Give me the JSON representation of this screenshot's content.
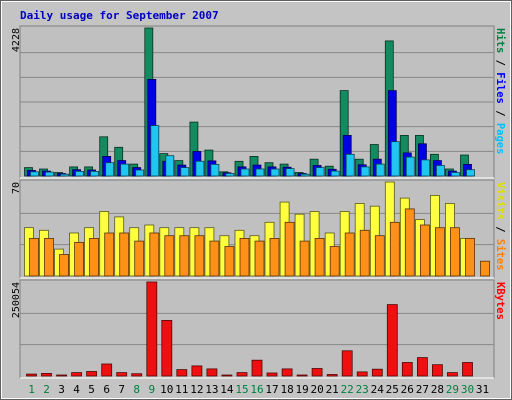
{
  "chart_data": {
    "type": "bar",
    "title": "Daily usage for September 2007",
    "categories": [
      "1",
      "2",
      "3",
      "4",
      "5",
      "6",
      "7",
      "8",
      "9",
      "10",
      "11",
      "12",
      "13",
      "14",
      "15",
      "16",
      "17",
      "18",
      "19",
      "20",
      "21",
      "22",
      "23",
      "24",
      "25",
      "26",
      "27",
      "28",
      "29",
      "30",
      "31"
    ],
    "weekend_days": [
      "1",
      "2",
      "8",
      "9",
      "15",
      "16",
      "22",
      "23",
      "29",
      "30"
    ],
    "panels": [
      {
        "id": "hits_panel",
        "max_label": "4228",
        "ylim": [
          0,
          4228
        ],
        "axis_labels": [
          {
            "text": "Hits",
            "color": "#008040"
          },
          {
            "text": " / ",
            "color": "#000000"
          },
          {
            "text": "Files",
            "color": "#0000ff"
          },
          {
            "text": " / ",
            "color": "#000000"
          },
          {
            "text": "Pages",
            "color": "#00c0ff"
          }
        ],
        "series": [
          {
            "name": "Hits",
            "color": "#138a60",
            "values": [
              240,
              200,
              100,
              260,
              260,
              1120,
              820,
              340,
              4228,
              640,
              440,
              1540,
              740,
              120,
              420,
              560,
              380,
              340,
              100,
              480,
              280,
              2440,
              480,
              900,
              3860,
              1160,
              1160,
              620,
              200,
              600,
              0
            ]
          },
          {
            "name": "Files",
            "color": "#0000e6",
            "values": [
              160,
              140,
              70,
              180,
              170,
              560,
              440,
              240,
              2760,
              420,
              310,
              700,
              430,
              90,
              260,
              310,
              260,
              250,
              70,
              300,
              190,
              1160,
              320,
              480,
              2440,
              660,
              920,
              440,
              140,
              330,
              0
            ]
          },
          {
            "name": "Pages",
            "color": "#1ec6f0",
            "values": [
              120,
              110,
              50,
              130,
              130,
              380,
              340,
              170,
              1440,
              580,
              240,
              420,
              330,
              70,
              200,
              200,
              200,
              210,
              50,
              240,
              140,
              620,
              260,
              340,
              980,
              540,
              460,
              300,
              100,
              180,
              0
            ]
          }
        ]
      },
      {
        "id": "visits_panel",
        "max_label": "70",
        "ylim": [
          0,
          70
        ],
        "axis_labels": [
          {
            "text": "Visits",
            "color": "#e0e000"
          },
          {
            "text": " / ",
            "color": "#000000"
          },
          {
            "text": "Sites",
            "color": "#ff8000"
          }
        ],
        "series": [
          {
            "name": "Visits",
            "color": "#ffff40",
            "values": [
              36,
              34,
              20,
              32,
              36,
              48,
              44,
              36,
              38,
              36,
              36,
              36,
              36,
              30,
              34,
              30,
              40,
              55,
              46,
              48,
              32,
              48,
              54,
              52,
              70,
              58,
              42,
              60,
              54,
              28,
              0
            ]
          },
          {
            "name": "Sites",
            "color": "#ff9018",
            "values": [
              28,
              28,
              16,
              25,
              28,
              32,
              32,
              26,
              32,
              30,
              30,
              30,
              26,
              22,
              28,
              26,
              28,
              40,
              26,
              28,
              22,
              32,
              34,
              30,
              40,
              50,
              38,
              36,
              36,
              28,
              11
            ]
          }
        ]
      },
      {
        "id": "kbytes_panel",
        "max_label": "250054",
        "ylim": [
          0,
          250054
        ],
        "axis_labels": [
          {
            "text": "KBytes",
            "color": "#ff0000"
          }
        ],
        "series": [
          {
            "name": "KBytes",
            "color": "#ee1010",
            "values": [
              5000,
              7000,
              2000,
              9000,
              12000,
              32000,
              9000,
              6000,
              260000,
              148000,
              17000,
              27000,
              19000,
              2000,
              9000,
              42000,
              8000,
              19000,
              2000,
              20000,
              4000,
              67000,
              11000,
              18000,
              190000,
              36000,
              49000,
              30000,
              9000,
              36000,
              0
            ]
          }
        ]
      }
    ]
  }
}
